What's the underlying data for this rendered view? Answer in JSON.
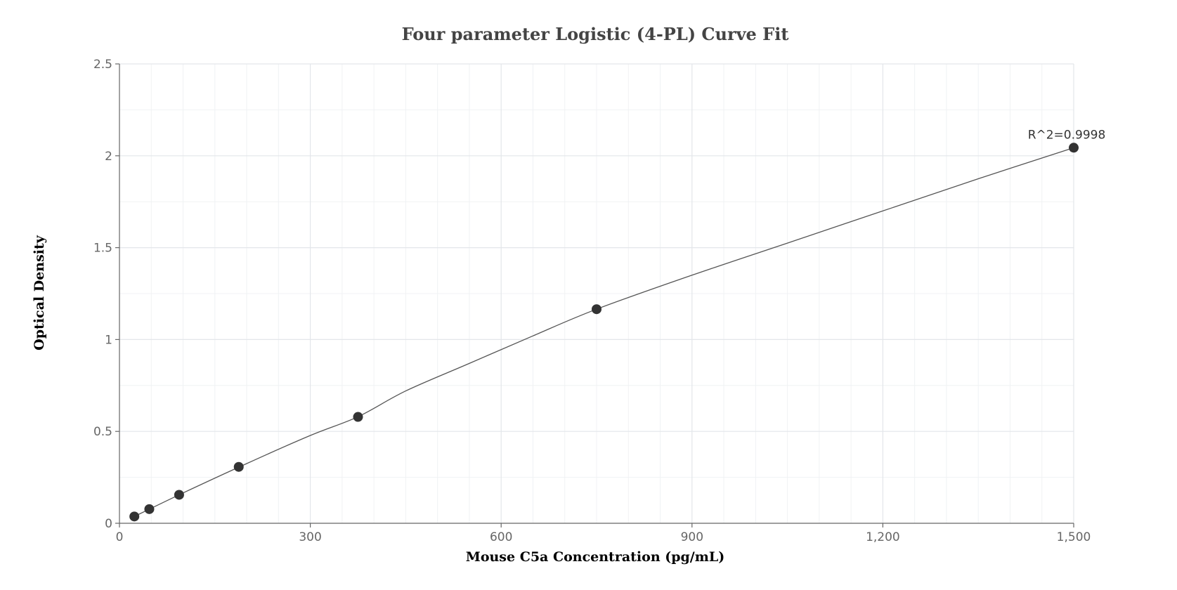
{
  "chart_data": {
    "type": "scatter",
    "title": "Four parameter Logistic (4-PL) Curve Fit",
    "xlabel": "Mouse C5a Concentration (pg/mL)",
    "ylabel": "Optical Density",
    "xlim": [
      0,
      1500
    ],
    "ylim": [
      0,
      2.5
    ],
    "x_ticks": [
      0,
      300,
      600,
      900,
      1200,
      1500
    ],
    "x_tick_labels": [
      "0",
      "300",
      "600",
      "900",
      "1,200",
      "1,500"
    ],
    "y_ticks": [
      0,
      0.5,
      1,
      1.5,
      2,
      2.5
    ],
    "y_tick_labels": [
      "0",
      "0.5",
      "1",
      "1.5",
      "2",
      "2.5"
    ],
    "grid": true,
    "minor_grid": true,
    "legend": false,
    "points": [
      {
        "x": 23.4,
        "y": 0.037
      },
      {
        "x": 46.9,
        "y": 0.077
      },
      {
        "x": 93.8,
        "y": 0.155
      },
      {
        "x": 187.5,
        "y": 0.307
      },
      {
        "x": 375,
        "y": 0.579
      },
      {
        "x": 750,
        "y": 1.165
      },
      {
        "x": 1500,
        "y": 2.044
      }
    ],
    "fit_curve": [
      {
        "x": 23.4,
        "y": 0.037
      },
      {
        "x": 100,
        "y": 0.165
      },
      {
        "x": 200,
        "y": 0.325
      },
      {
        "x": 300,
        "y": 0.478
      },
      {
        "x": 375,
        "y": 0.58
      },
      {
        "x": 450,
        "y": 0.72
      },
      {
        "x": 550,
        "y": 0.87
      },
      {
        "x": 650,
        "y": 1.02
      },
      {
        "x": 750,
        "y": 1.165
      },
      {
        "x": 900,
        "y": 1.35
      },
      {
        "x": 1050,
        "y": 1.525
      },
      {
        "x": 1200,
        "y": 1.7
      },
      {
        "x": 1350,
        "y": 1.875
      },
      {
        "x": 1500,
        "y": 2.044
      }
    ],
    "annotation": {
      "text": "R^2=0.9998",
      "x": 1500,
      "y": 2.044
    },
    "colors": {
      "points": "#333333",
      "curve": "#555555",
      "grid": "#e3e6ea"
    }
  }
}
